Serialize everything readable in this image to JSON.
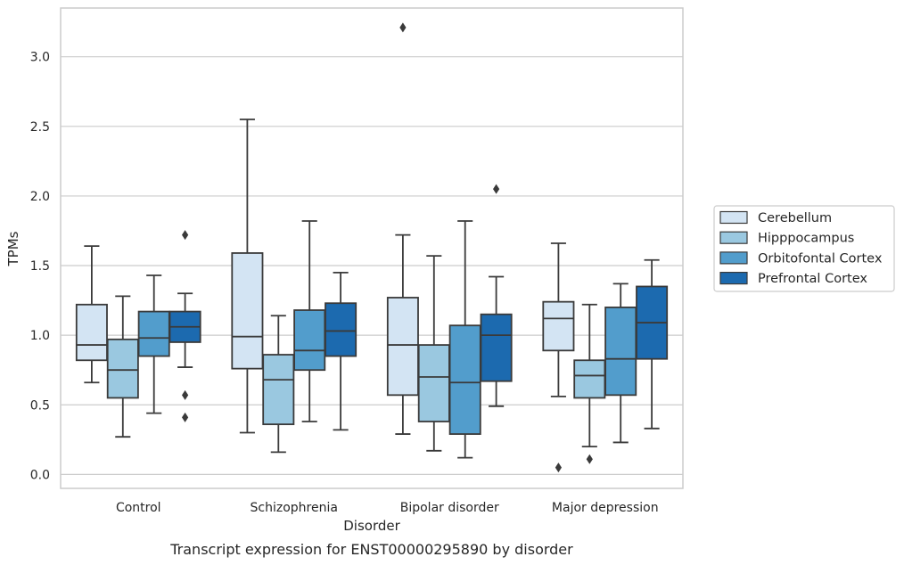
{
  "chart_data": {
    "type": "box",
    "xlabel": "Disorder",
    "ylabel": "TPMs",
    "caption": "Transcript expression for ENST00000295890 by disorder",
    "ylim": [
      -0.1,
      3.35
    ],
    "yticks": [
      "0.0",
      "0.5",
      "1.0",
      "1.5",
      "2.0",
      "2.5",
      "3.0"
    ],
    "grid": true,
    "legend_position": "right",
    "categories": [
      "Control",
      "Schizophrenia",
      "Bipolar disorder",
      "Major depression"
    ],
    "series": [
      {
        "name": "Cerebellum",
        "color": "#d3e4f3",
        "boxes": [
          {
            "whislo": 0.66,
            "q1": 0.82,
            "med": 0.93,
            "q3": 1.22,
            "whishi": 1.64,
            "fliers": []
          },
          {
            "whislo": 0.3,
            "q1": 0.76,
            "med": 0.99,
            "q3": 1.59,
            "whishi": 2.55,
            "fliers": []
          },
          {
            "whislo": 0.29,
            "q1": 0.57,
            "med": 0.93,
            "q3": 1.27,
            "whishi": 1.72,
            "fliers": [
              3.21
            ]
          },
          {
            "whislo": 0.56,
            "q1": 0.89,
            "med": 1.12,
            "q3": 1.24,
            "whishi": 1.66,
            "fliers": [
              0.05
            ]
          }
        ]
      },
      {
        "name": "Hipppocampus",
        "color": "#9ac8e0",
        "boxes": [
          {
            "whislo": 0.27,
            "q1": 0.55,
            "med": 0.75,
            "q3": 0.97,
            "whishi": 1.28,
            "fliers": []
          },
          {
            "whislo": 0.16,
            "q1": 0.36,
            "med": 0.68,
            "q3": 0.86,
            "whishi": 1.14,
            "fliers": []
          },
          {
            "whislo": 0.17,
            "q1": 0.38,
            "med": 0.7,
            "q3": 0.93,
            "whishi": 1.57,
            "fliers": []
          },
          {
            "whislo": 0.2,
            "q1": 0.55,
            "med": 0.71,
            "q3": 0.82,
            "whishi": 1.22,
            "fliers": [
              0.11
            ]
          }
        ]
      },
      {
        "name": "Orbitofontal Cortex",
        "color": "#529dcc",
        "boxes": [
          {
            "whislo": 0.44,
            "q1": 0.85,
            "med": 0.98,
            "q3": 1.17,
            "whishi": 1.43,
            "fliers": []
          },
          {
            "whislo": 0.38,
            "q1": 0.75,
            "med": 0.89,
            "q3": 1.18,
            "whishi": 1.82,
            "fliers": []
          },
          {
            "whislo": 0.12,
            "q1": 0.29,
            "med": 0.66,
            "q3": 1.07,
            "whishi": 1.82,
            "fliers": []
          },
          {
            "whislo": 0.23,
            "q1": 0.57,
            "med": 0.83,
            "q3": 1.2,
            "whishi": 1.37,
            "fliers": []
          }
        ]
      },
      {
        "name": "Prefrontal Cortex",
        "color": "#1c6aaf",
        "boxes": [
          {
            "whislo": 0.77,
            "q1": 0.95,
            "med": 1.06,
            "q3": 1.17,
            "whishi": 1.3,
            "fliers": [
              1.72,
              0.57,
              0.41
            ]
          },
          {
            "whislo": 0.32,
            "q1": 0.85,
            "med": 1.03,
            "q3": 1.23,
            "whishi": 1.45,
            "fliers": []
          },
          {
            "whislo": 0.49,
            "q1": 0.67,
            "med": 1.0,
            "q3": 1.15,
            "whishi": 1.42,
            "fliers": [
              2.05
            ]
          },
          {
            "whislo": 0.33,
            "q1": 0.83,
            "med": 1.09,
            "q3": 1.35,
            "whishi": 1.54,
            "fliers": []
          }
        ]
      }
    ]
  }
}
